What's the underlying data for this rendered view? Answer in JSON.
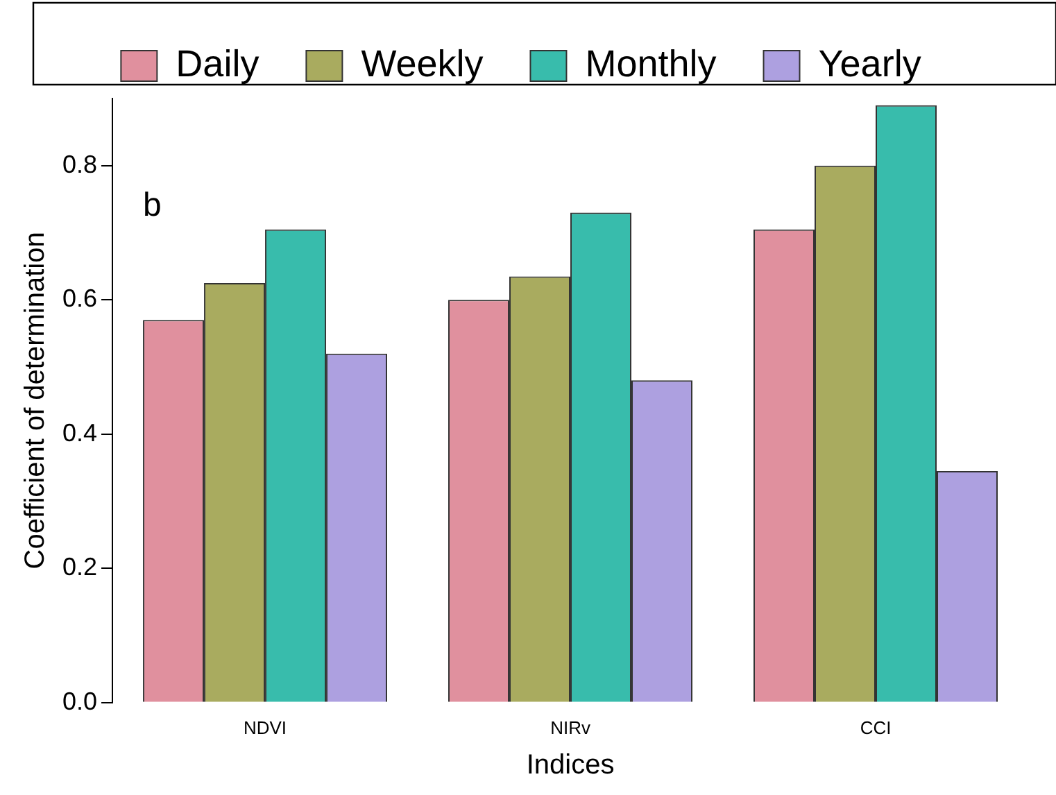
{
  "chart_data": {
    "type": "bar",
    "xlabel": "Indices",
    "ylabel": "Coefficient of determination",
    "categories": [
      "NDVI",
      "NIRv",
      "CCI"
    ],
    "series": [
      {
        "name": "Daily",
        "color": "#e0909e",
        "values": [
          0.57,
          0.6,
          0.705
        ]
      },
      {
        "name": "Weekly",
        "color": "#a9ab5f",
        "values": [
          0.625,
          0.635,
          0.8
        ]
      },
      {
        "name": "Monthly",
        "color": "#38bcac",
        "values": [
          0.705,
          0.73,
          0.89
        ]
      },
      {
        "name": "Yearly",
        "color": "#ada0e0",
        "values": [
          0.52,
          0.48,
          0.345
        ]
      }
    ],
    "ylim": [
      0,
      0.9
    ],
    "yticks": [
      {
        "value": 0,
        "label": "0.0"
      },
      {
        "value": 0.2,
        "label": "0.2"
      },
      {
        "value": 0.4,
        "label": "0.4"
      },
      {
        "value": 0.6,
        "label": "0.6"
      },
      {
        "value": 0.8,
        "label": "0.8"
      }
    ],
    "grid": false,
    "legend": "top",
    "annotations": [
      "b"
    ]
  }
}
